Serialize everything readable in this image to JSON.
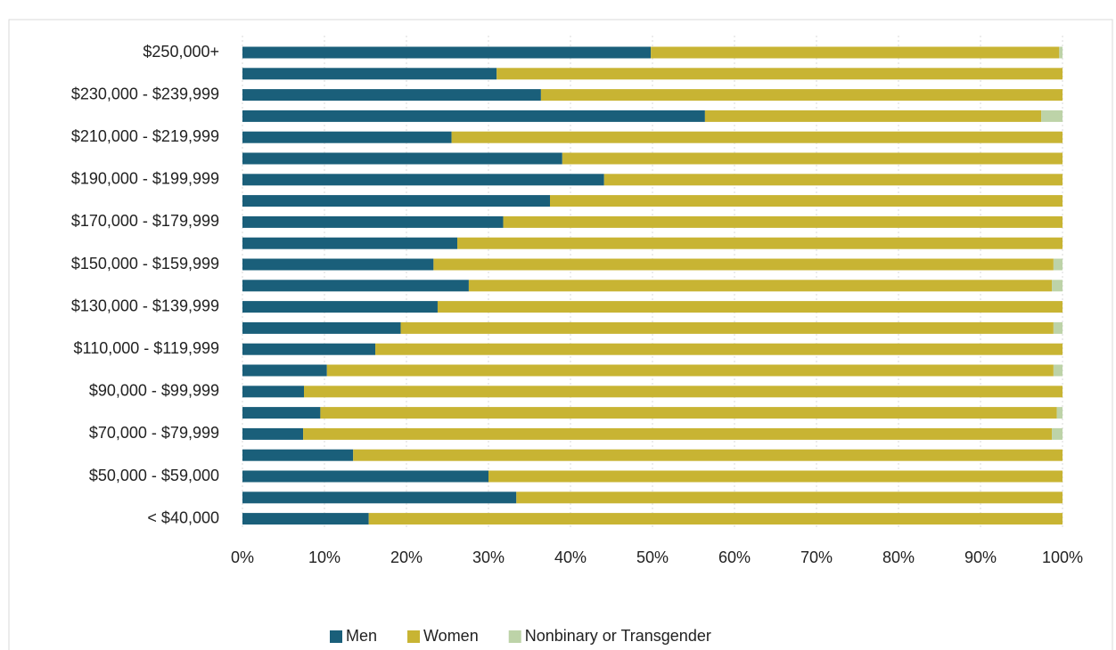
{
  "chart_data": {
    "type": "stacked_barh",
    "categories": [
      "$250,000+",
      null,
      "$230,000 - $239,999",
      null,
      "$210,000 - $219,999",
      null,
      "$190,000 - $199,999",
      null,
      "$170,000 - $179,999",
      null,
      "$150,000 - $159,999",
      null,
      "$130,000 - $139,999",
      null,
      "$110,000 - $119,999",
      null,
      "$90,000 - $99,999",
      null,
      "$70,000 - $79,999",
      null,
      "$50,000 - $59,000",
      null,
      "< $40,000"
    ],
    "series": [
      {
        "name": "Men",
        "color": "#1a5f7a",
        "values": [
          49.8,
          31.0,
          36.4,
          56.4,
          25.5,
          39.0,
          44.1,
          37.5,
          31.8,
          26.2,
          23.3,
          27.6,
          23.8,
          19.3,
          16.2,
          10.3,
          7.5,
          9.5,
          7.4,
          13.5,
          30.0,
          33.4,
          15.4
        ]
      },
      {
        "name": "Women",
        "color": "#c8b433",
        "values": [
          49.8,
          69.0,
          63.6,
          41.0,
          74.5,
          61.0,
          55.9,
          62.5,
          68.2,
          73.8,
          75.6,
          71.1,
          76.2,
          79.6,
          83.8,
          88.6,
          92.5,
          89.8,
          91.3,
          86.5,
          70.0,
          66.6,
          84.6
        ]
      },
      {
        "name": "Nonbinary or Transgender",
        "color": "#bdd3a8",
        "values": [
          0.4,
          0,
          0,
          2.6,
          0,
          0,
          0,
          0,
          0,
          0,
          1.1,
          1.3,
          0,
          1.1,
          0,
          1.1,
          0,
          0.7,
          1.3,
          0,
          0,
          0,
          0
        ]
      }
    ],
    "xlim": [
      0,
      100
    ],
    "xticks": [
      {
        "value": 0,
        "label": "0%"
      },
      {
        "value": 10,
        "label": "10%"
      },
      {
        "value": 20,
        "label": "20%"
      },
      {
        "value": 30,
        "label": "30%"
      },
      {
        "value": 40,
        "label": "40%"
      },
      {
        "value": 50,
        "label": "50%"
      },
      {
        "value": 60,
        "label": "60%"
      },
      {
        "value": 70,
        "label": "70%"
      },
      {
        "value": 80,
        "label": "80%"
      },
      {
        "value": 90,
        "label": "90%"
      },
      {
        "value": 100,
        "label": "100%"
      }
    ],
    "grid": true,
    "legend": "bottom"
  }
}
